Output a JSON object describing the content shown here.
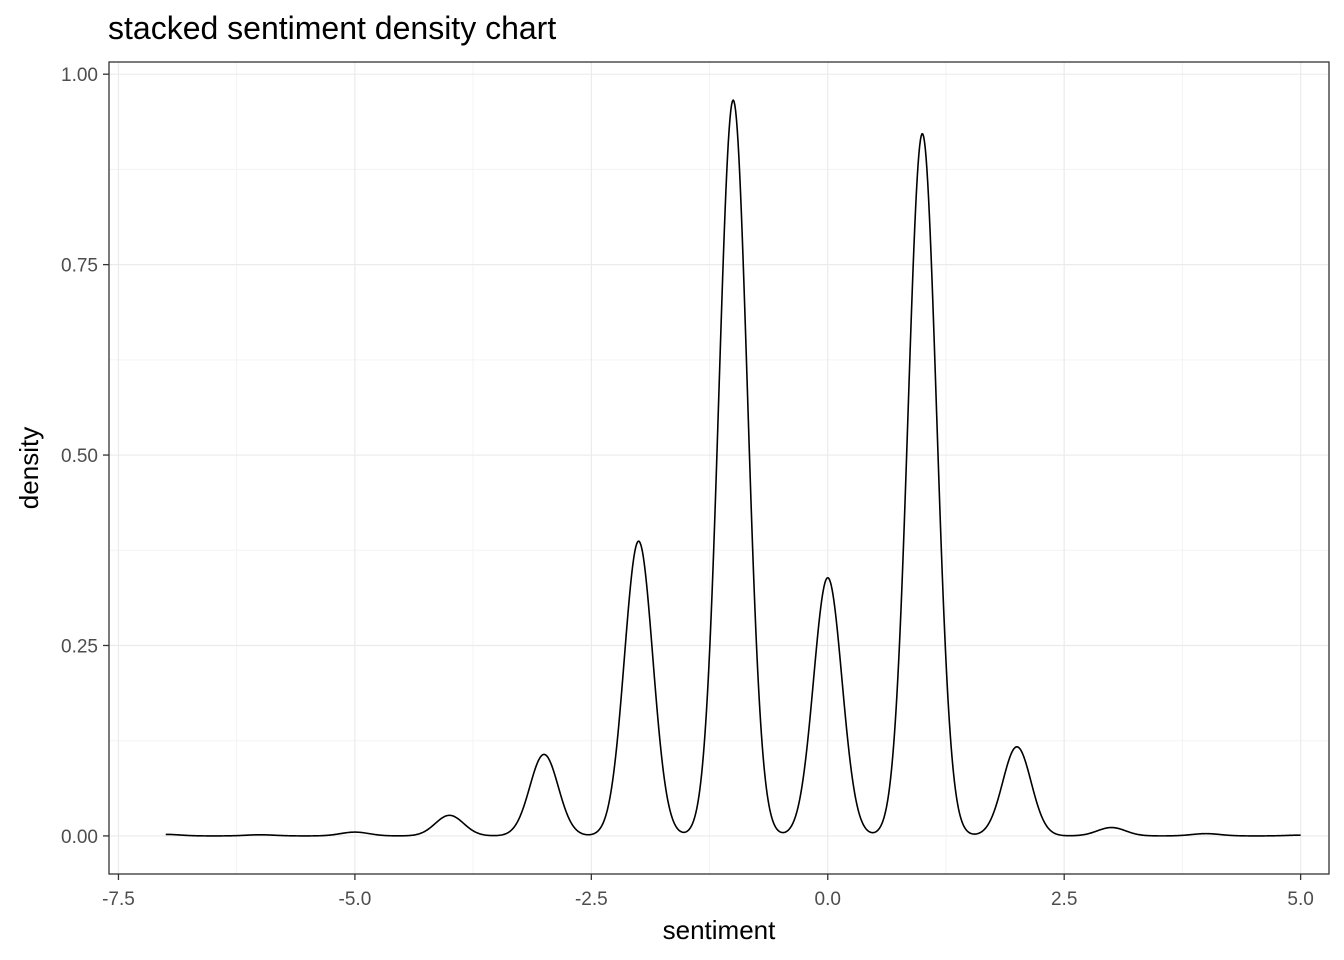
{
  "chart_data": {
    "type": "area",
    "title": "stacked sentiment density chart",
    "xlabel": "sentiment",
    "ylabel": "density",
    "xlim": [
      -7.6,
      5.3
    ],
    "ylim": [
      -0.05,
      1.016
    ],
    "x_ticks": [
      -7.5,
      -5.0,
      -2.5,
      0.0,
      2.5,
      5.0
    ],
    "x_tick_labels": [
      "-7.5",
      "-5.0",
      "-2.5",
      "0.0",
      "2.5",
      "5.0"
    ],
    "y_ticks": [
      0.0,
      0.25,
      0.5,
      0.75,
      1.0
    ],
    "y_tick_labels": [
      "0.00",
      "0.25",
      "0.50",
      "0.75",
      "1.00"
    ],
    "grid": true,
    "line_color": "#000000",
    "peaks": [
      {
        "x": -7.0,
        "y": 0.002
      },
      {
        "x": -6.0,
        "y": 0.0015
      },
      {
        "x": -5.0,
        "y": 0.005
      },
      {
        "x": -4.0,
        "y": 0.027
      },
      {
        "x": -3.0,
        "y": 0.107
      },
      {
        "x": -2.0,
        "y": 0.387
      },
      {
        "x": -1.0,
        "y": 0.966
      },
      {
        "x": 0.0,
        "y": 0.339
      },
      {
        "x": 1.0,
        "y": 0.922
      },
      {
        "x": 2.0,
        "y": 0.117
      },
      {
        "x": 3.0,
        "y": 0.011
      },
      {
        "x": 4.0,
        "y": 0.003
      },
      {
        "x": 5.0,
        "y": 0.001
      }
    ]
  }
}
